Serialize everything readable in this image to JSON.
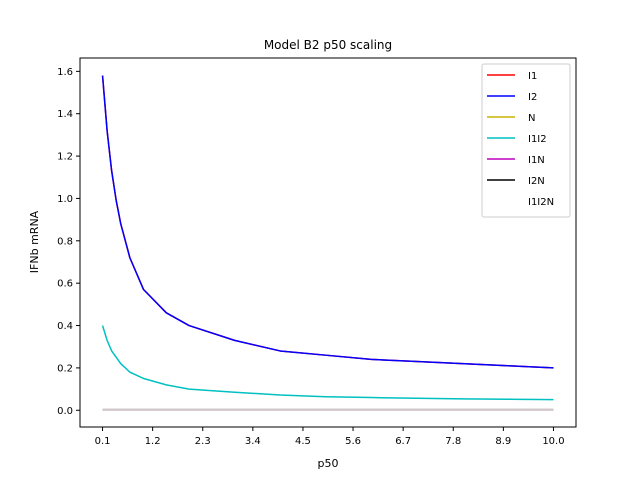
{
  "chart_data": {
    "type": "line",
    "title": "Model B2 p50 scaling",
    "xlabel": "p50",
    "ylabel": "IFNb mRNA",
    "xlim": [
      -0.395,
      10.495
    ],
    "ylim": [
      -0.079,
      1.663
    ],
    "xticks": [
      0.1,
      1.2,
      2.3,
      3.4,
      4.5,
      5.6,
      6.7,
      7.8,
      8.9,
      10.0
    ],
    "xtick_labels": [
      "0.1",
      "1.2",
      "2.3",
      "3.4",
      "4.5",
      "5.6",
      "6.7",
      "7.8",
      "8.9",
      "10.0"
    ],
    "yticks": [
      0.0,
      0.2,
      0.4,
      0.6,
      0.8,
      1.0,
      1.2,
      1.4,
      1.6
    ],
    "ytick_labels": [
      "0.0",
      "0.2",
      "0.4",
      "0.6",
      "0.8",
      "1.0",
      "1.2",
      "1.4",
      "1.6"
    ],
    "grid": false,
    "legend_position": "top-right",
    "x": [
      0.1,
      0.2,
      0.3,
      0.4,
      0.5,
      0.7,
      1.0,
      1.5,
      2.0,
      3.0,
      4.0,
      5.0,
      6.0,
      7.0,
      8.0,
      9.0,
      10.0
    ],
    "series": [
      {
        "name": "I1",
        "color": "#ff0000",
        "values": [
          1.58,
          1.32,
          1.13,
          0.99,
          0.88,
          0.72,
          0.57,
          0.46,
          0.4,
          0.33,
          0.28,
          0.26,
          0.24,
          0.23,
          0.22,
          0.21,
          0.2
        ]
      },
      {
        "name": "I2",
        "color": "#0000ff",
        "values": [
          1.58,
          1.32,
          1.13,
          0.99,
          0.88,
          0.72,
          0.57,
          0.46,
          0.4,
          0.33,
          0.28,
          0.26,
          0.24,
          0.23,
          0.22,
          0.21,
          0.2
        ]
      },
      {
        "name": "N",
        "color": "#c8b400",
        "values": [
          0.0,
          0.0,
          0.0,
          0.0,
          0.0,
          0.0,
          0.0,
          0.0,
          0.0,
          0.0,
          0.0,
          0.0,
          0.0,
          0.0,
          0.0,
          0.0,
          0.0
        ]
      },
      {
        "name": "I1I2",
        "color": "#00c0c0",
        "values": [
          0.4,
          0.33,
          0.28,
          0.25,
          0.22,
          0.18,
          0.15,
          0.12,
          0.1,
          0.085,
          0.072,
          0.064,
          0.06,
          0.057,
          0.054,
          0.052,
          0.05
        ]
      },
      {
        "name": "I1N",
        "color": "#bf00bf",
        "values": [
          0.0,
          0.0,
          0.0,
          0.0,
          0.0,
          0.0,
          0.0,
          0.0,
          0.0,
          0.0,
          0.0,
          0.0,
          0.0,
          0.0,
          0.0,
          0.0,
          0.0
        ]
      },
      {
        "name": "I2N",
        "color": "#000000",
        "values": [
          0.0,
          0.0,
          0.0,
          0.0,
          0.0,
          0.0,
          0.0,
          0.0,
          0.0,
          0.0,
          0.0,
          0.0,
          0.0,
          0.0,
          0.0,
          0.0,
          0.0
        ]
      },
      {
        "name": "I1I2N",
        "color": "#ffffff",
        "values": [
          0.0,
          0.0,
          0.0,
          0.0,
          0.0,
          0.0,
          0.0,
          0.0,
          0.0,
          0.0,
          0.0,
          0.0,
          0.0,
          0.0,
          0.0,
          0.0,
          0.0
        ]
      }
    ]
  }
}
